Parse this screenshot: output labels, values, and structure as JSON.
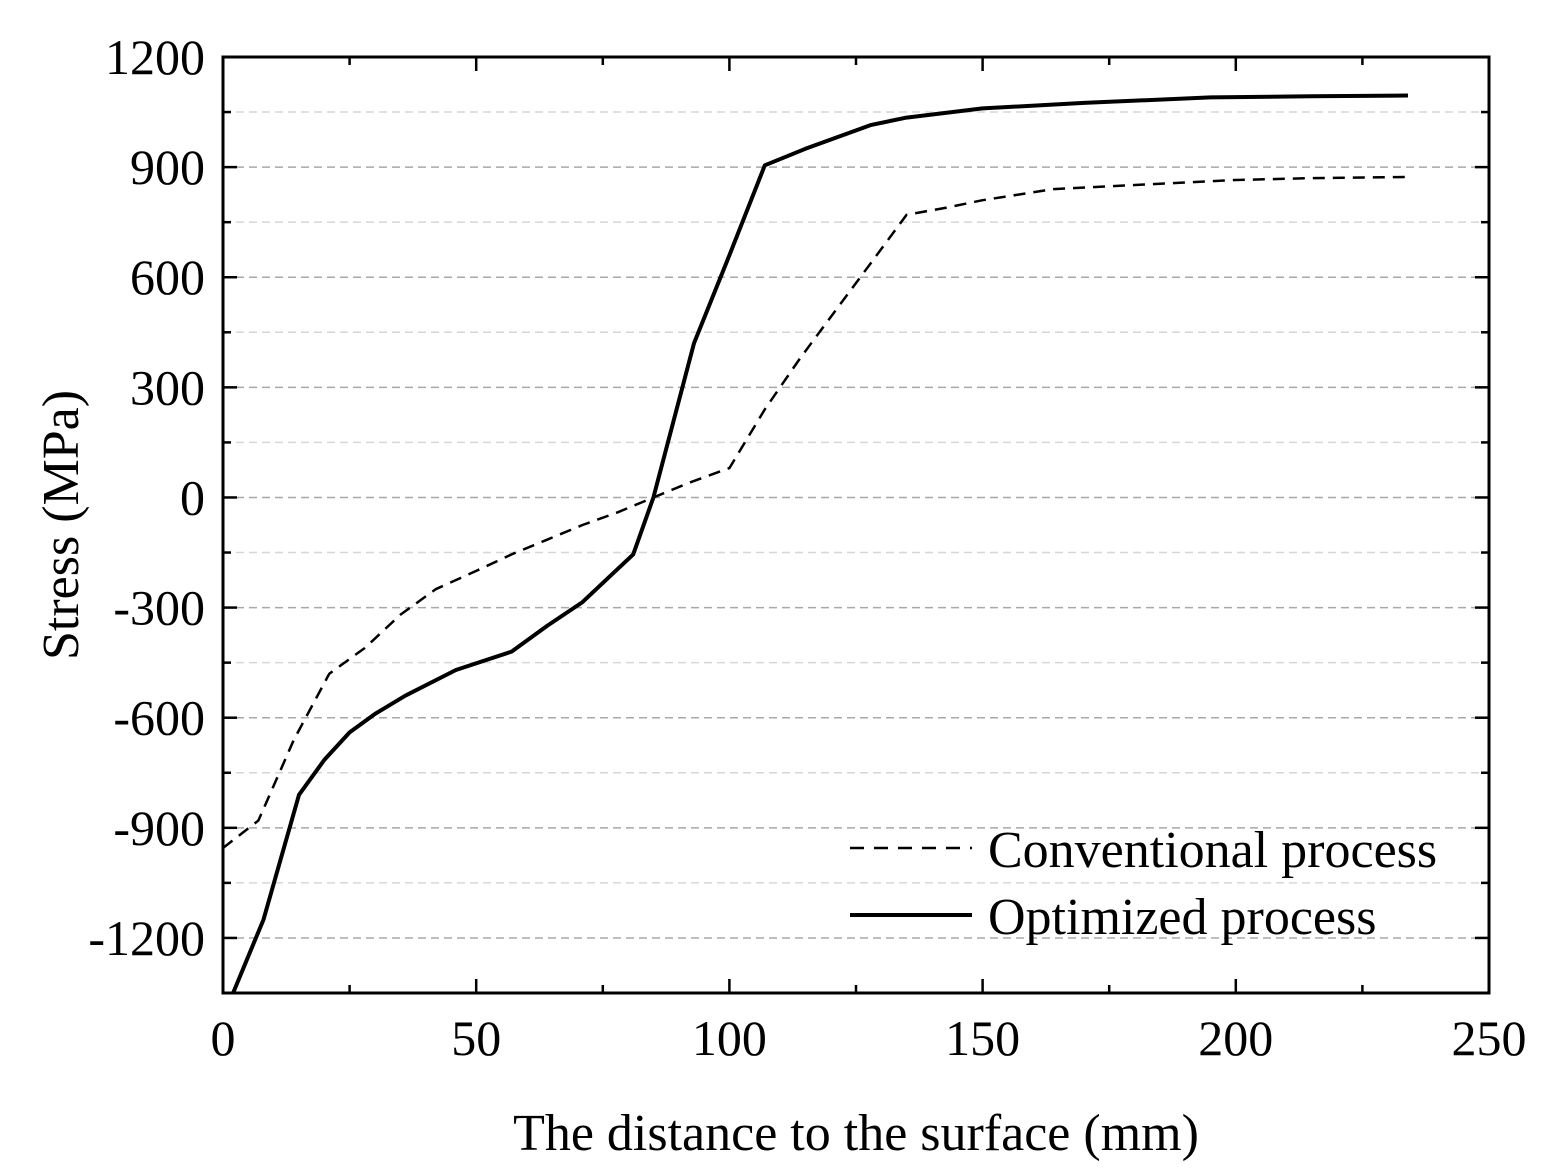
{
  "chart_data": {
    "type": "line",
    "title": "",
    "xlabel": "The distance to the surface (mm)",
    "ylabel": "Stress (MPa)",
    "xlim": [
      0,
      250
    ],
    "ylim": [
      -1350,
      1200
    ],
    "xticks": [
      0,
      50,
      100,
      150,
      200,
      250
    ],
    "yticks": [
      -1200,
      -900,
      -600,
      -300,
      0,
      300,
      600,
      900,
      1200
    ],
    "xtick_labels": [
      "0",
      "50",
      "100",
      "150",
      "200",
      "250"
    ],
    "ytick_labels": [
      "-1200",
      "-900",
      "-600",
      "-300",
      "0",
      "300",
      "600",
      "900",
      "1200"
    ],
    "grid": "horizontal dashed",
    "legend_position": "bottom-right",
    "series": [
      {
        "name": "Conventional process",
        "style": "dashed",
        "color": "#000000",
        "x": [
          0,
          7,
          14,
          21,
          28,
          35,
          42,
          50,
          57,
          64,
          71,
          78,
          85,
          92,
          100,
          107,
          114,
          121,
          128,
          135,
          143,
          150,
          164,
          178,
          200,
          215,
          234
        ],
        "y": [
          -955,
          -880,
          -660,
          -480,
          -410,
          -320,
          -250,
          -200,
          -155,
          -115,
          -75,
          -40,
          0,
          40,
          80,
          240,
          380,
          510,
          640,
          770,
          790,
          810,
          840,
          850,
          865,
          870,
          873
        ]
      },
      {
        "name": "Optimized process",
        "style": "solid",
        "color": "#000000",
        "x": [
          2,
          8,
          15,
          20,
          25,
          30,
          36,
          46,
          57,
          64,
          71,
          76,
          81,
          85,
          93,
          100,
          107,
          115,
          128,
          135,
          150,
          170,
          195,
          215,
          234
        ],
        "y": [
          -1350,
          -1150,
          -810,
          -715,
          -640,
          -590,
          -540,
          -470,
          -420,
          -350,
          -285,
          -220,
          -155,
          0,
          420,
          660,
          905,
          950,
          1015,
          1035,
          1060,
          1075,
          1090,
          1093,
          1095
        ]
      }
    ]
  }
}
